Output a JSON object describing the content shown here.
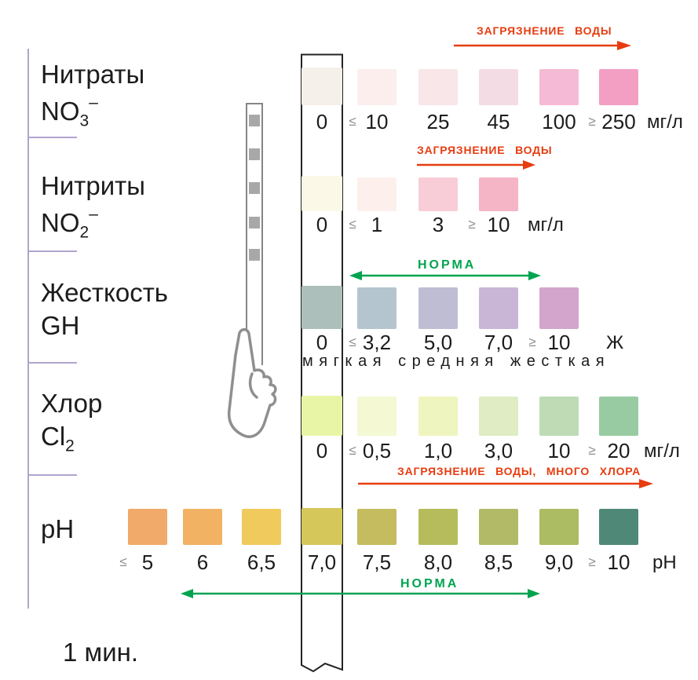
{
  "timer_label": "1 мин.",
  "palette": {
    "pollution_red": "#e73c10",
    "norm_green": "#00a44f",
    "rail_purple": "#b1a4ce",
    "strip_outline": "#242424",
    "hand_outline": "#8f8f8f",
    "dry_pad_gray": "#a8a8a8",
    "sign_gray": "#8e8e8e",
    "text": "#1c1c1c"
  },
  "icons": {
    "hand": "hand-holding-strip-icon",
    "strip": "wet-test-strip",
    "dry_strip": "dry-test-strip"
  },
  "rows": [
    {
      "id": "nitrates",
      "title": "Нитраты",
      "formula": {
        "base": "NO",
        "sub": "3",
        "sup": "–"
      },
      "unit": "мг/л",
      "annotation": "ЗАГРЯЗНЕНИЕ ВОДЫ",
      "strip_pad": {
        "label": "0",
        "color": "#f6f0ea"
      },
      "swatches": [
        {
          "prefix": "≤",
          "label": "10",
          "color": "#fbeeed"
        },
        {
          "label": "25",
          "color": "#f8e6e8"
        },
        {
          "label": "45",
          "color": "#f3dce4"
        },
        {
          "label": "100",
          "color": "#f5bad5"
        },
        {
          "prefix": "≥",
          "label": "250",
          "color": "#f39fc3"
        }
      ]
    },
    {
      "id": "nitrites",
      "title": "Нитриты",
      "formula": {
        "base": "NO",
        "sub": "2",
        "sup": "–"
      },
      "unit": "мг/л",
      "annotation": "ЗАГРЯЗНЕНИЕ ВОДЫ",
      "strip_pad": {
        "label": "0",
        "color": "#fbf8e7"
      },
      "swatches": [
        {
          "prefix": "≤",
          "label": "1",
          "color": "#fdf0ec"
        },
        {
          "label": "3",
          "color": "#f9cdd8"
        },
        {
          "prefix": "≥",
          "label": "10",
          "color": "#f5b5c6"
        }
      ]
    },
    {
      "id": "hardness",
      "title": "Жесткость",
      "formula": {
        "base": "GH"
      },
      "unit": "Ж",
      "annotation": "НОРМА",
      "scale_label": "мягкая средняя жесткая",
      "strip_pad": {
        "label": "0",
        "color": "#adbfba"
      },
      "swatches": [
        {
          "prefix": "≤",
          "label": "3,2",
          "color": "#b5c5d0"
        },
        {
          "label": "5,0",
          "color": "#bfbdd3"
        },
        {
          "label": "7,0",
          "color": "#c9b6d7"
        },
        {
          "prefix": "≥",
          "label": "10",
          "color": "#d3a5cd"
        }
      ]
    },
    {
      "id": "chlorine",
      "title": "Хлор",
      "formula": {
        "base": "Cl",
        "sub": "2"
      },
      "unit": "мг/л",
      "annotation": "ЗАГРЯЗНЕНИЕ ВОДЫ, МНОГО ХЛОРА",
      "strip_pad": {
        "label": "0",
        "color": "#e9f5a6"
      },
      "swatches": [
        {
          "prefix": "≤",
          "label": "0,5",
          "color": "#f4f9d4"
        },
        {
          "label": "1,0",
          "color": "#eff5be"
        },
        {
          "label": "3,0",
          "color": "#dfecc4"
        },
        {
          "label": "10",
          "color": "#bedbb6"
        },
        {
          "prefix": "≥",
          "label": "20",
          "color": "#98cba2"
        }
      ]
    },
    {
      "id": "ph",
      "title": "pH",
      "unit": "pH",
      "annotation": "НОРМА",
      "strip_pad": {
        "label": "7,0",
        "color": "#d5c75a"
      },
      "swatches": [
        {
          "prefix": "≤",
          "label": "5",
          "color": "#f1aa69"
        },
        {
          "label": "6",
          "color": "#f1b264"
        },
        {
          "label": "6,5",
          "color": "#f1ca5e"
        },
        {
          "label": "7,5",
          "color": "#c4bc5f"
        },
        {
          "label": "8,0",
          "color": "#b6bc5b"
        },
        {
          "label": "8,5",
          "color": "#b3ba67"
        },
        {
          "label": "9,0",
          "color": "#acbc62"
        },
        {
          "prefix": "≥",
          "label": "10",
          "color": "#4f8877"
        }
      ]
    }
  ]
}
